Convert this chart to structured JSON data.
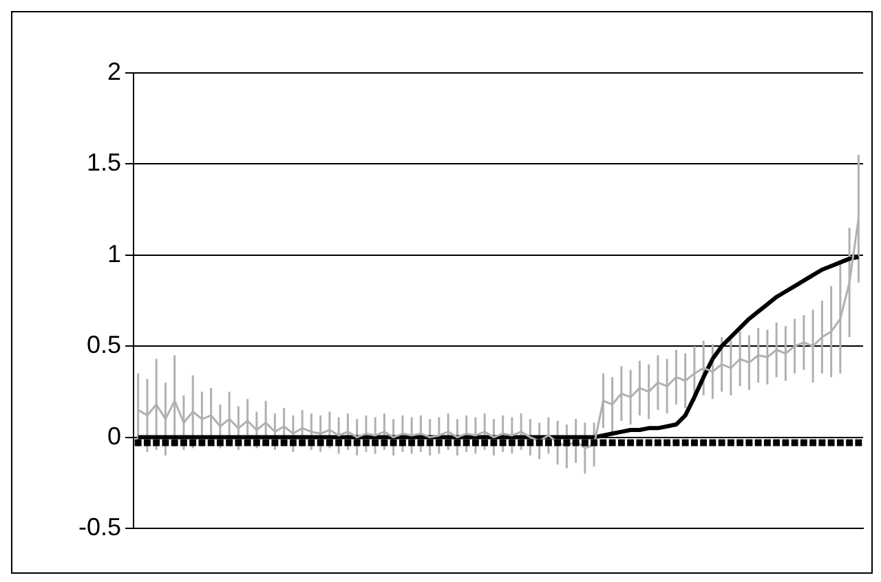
{
  "chart_data": {
    "type": "line",
    "categories": [
      null,
      null,
      null,
      null,
      null,
      null,
      null,
      null,
      null,
      null,
      null,
      null,
      null,
      null,
      null,
      null,
      null,
      null,
      null,
      null,
      null,
      null,
      null,
      null,
      null,
      null,
      null,
      null,
      null,
      null,
      null,
      null,
      null,
      null,
      null,
      null,
      null,
      null,
      null,
      null,
      null,
      null,
      null,
      null,
      null,
      null,
      null,
      null,
      null,
      null,
      null,
      null,
      null,
      null,
      null,
      null,
      null,
      null,
      null,
      null,
      null,
      null,
      null,
      null,
      null,
      null,
      null,
      null,
      null,
      null,
      null,
      null,
      null,
      null,
      null,
      null,
      null,
      null,
      null,
      null
    ],
    "series": [
      {
        "type": "scatter",
        "marker": "square",
        "color": "#000000",
        "values": [
          -0.03,
          -0.03,
          -0.03,
          -0.03,
          -0.03,
          -0.03,
          -0.03,
          -0.03,
          -0.03,
          -0.03,
          -0.03,
          -0.03,
          -0.03,
          -0.03,
          -0.03,
          -0.03,
          -0.03,
          -0.03,
          -0.03,
          -0.03,
          -0.03,
          -0.03,
          -0.03,
          -0.03,
          -0.03,
          -0.03,
          -0.03,
          -0.03,
          -0.03,
          -0.03,
          -0.03,
          -0.03,
          -0.03,
          -0.03,
          -0.03,
          -0.03,
          -0.03,
          -0.03,
          -0.03,
          -0.03,
          -0.03,
          -0.03,
          -0.03,
          -0.03,
          -0.03,
          -0.03,
          -0.03,
          -0.03,
          -0.03,
          -0.03,
          -0.03,
          -0.03,
          -0.03,
          -0.03,
          -0.03,
          -0.03,
          -0.03,
          -0.03,
          -0.03,
          -0.03,
          -0.03,
          -0.03,
          -0.03,
          -0.03,
          -0.03,
          -0.03,
          -0.03,
          -0.03,
          -0.03,
          -0.03,
          -0.03,
          -0.03,
          -0.03,
          -0.03,
          -0.03,
          -0.03,
          -0.03,
          -0.03,
          -0.03,
          -0.03
        ]
      },
      {
        "type": "line",
        "line_style": "solid",
        "marker": "none",
        "color": "#b0b0b0",
        "values": [
          0.15,
          0.12,
          0.18,
          0.1,
          0.2,
          0.08,
          0.14,
          0.1,
          0.12,
          0.06,
          0.1,
          0.05,
          0.09,
          0.04,
          0.08,
          0.03,
          0.06,
          0.02,
          0.05,
          0.03,
          0.02,
          0.04,
          0.01,
          0.03,
          0,
          0.02,
          0.01,
          0.03,
          0,
          0.02,
          0.01,
          0.02,
          0,
          0.01,
          0.03,
          0,
          0.02,
          0.01,
          0.03,
          0,
          0.02,
          0.01,
          0.03,
          0,
          -0.02,
          0.01,
          -0.03,
          -0.05,
          -0.02,
          -0.06,
          -0.04,
          0.2,
          0.18,
          0.24,
          0.22,
          0.27,
          0.25,
          0.3,
          0.28,
          0.33,
          0.31,
          0.35,
          0.38,
          0.36,
          0.4,
          0.38,
          0.43,
          0.41,
          0.45,
          0.44,
          0.48,
          0.46,
          0.5,
          0.52,
          0.5,
          0.55,
          0.58,
          0.65,
          0.85,
          1.2
        ],
        "errors": [
          0.2,
          0.2,
          0.25,
          0.2,
          0.25,
          0.15,
          0.2,
          0.15,
          0.15,
          0.12,
          0.15,
          0.12,
          0.12,
          0.1,
          0.12,
          0.1,
          0.1,
          0.1,
          0.1,
          0.1,
          0.1,
          0.1,
          0.1,
          0.1,
          0.1,
          0.1,
          0.1,
          0.1,
          0.1,
          0.1,
          0.1,
          0.1,
          0.1,
          0.1,
          0.1,
          0.1,
          0.1,
          0.1,
          0.1,
          0.1,
          0.1,
          0.1,
          0.1,
          0.1,
          0.1,
          0.1,
          0.12,
          0.12,
          0.12,
          0.14,
          0.12,
          0.15,
          0.15,
          0.15,
          0.15,
          0.15,
          0.15,
          0.15,
          0.15,
          0.15,
          0.15,
          0.15,
          0.15,
          0.15,
          0.15,
          0.15,
          0.15,
          0.15,
          0.15,
          0.15,
          0.15,
          0.15,
          0.15,
          0.15,
          0.2,
          0.2,
          0.25,
          0.3,
          0.3,
          0.35
        ]
      },
      {
        "marker": "none",
        "color": "#000000",
        "values": [
          0,
          0,
          0,
          0,
          0,
          0,
          0,
          0,
          0,
          0,
          0,
          0,
          0,
          0,
          0,
          0,
          0,
          0,
          0,
          0,
          0,
          0,
          0,
          0,
          0,
          0,
          0,
          0,
          0,
          0,
          0,
          0,
          0,
          0,
          0,
          0,
          0,
          0,
          0,
          0,
          0,
          0,
          0,
          0,
          0,
          0,
          0,
          0,
          0,
          0,
          0,
          0.01,
          0.02,
          0.03,
          0.04,
          0.04,
          0.05,
          0.05,
          0.06,
          0.07,
          0.12,
          0.22,
          0.33,
          0.43,
          0.5,
          0.55,
          0.6,
          0.65,
          0.69,
          0.73,
          0.77,
          0.8,
          0.83,
          0.86,
          0.89,
          0.92,
          0.94,
          0.96,
          0.98,
          0.99
        ]
      }
    ],
    "ylim": [
      -0.5,
      2
    ],
    "yticks": [
      -0.5,
      0,
      0.5,
      1,
      1.5,
      2
    ],
    "grid": "y",
    "tick_labels": "y",
    "legend": false
  }
}
